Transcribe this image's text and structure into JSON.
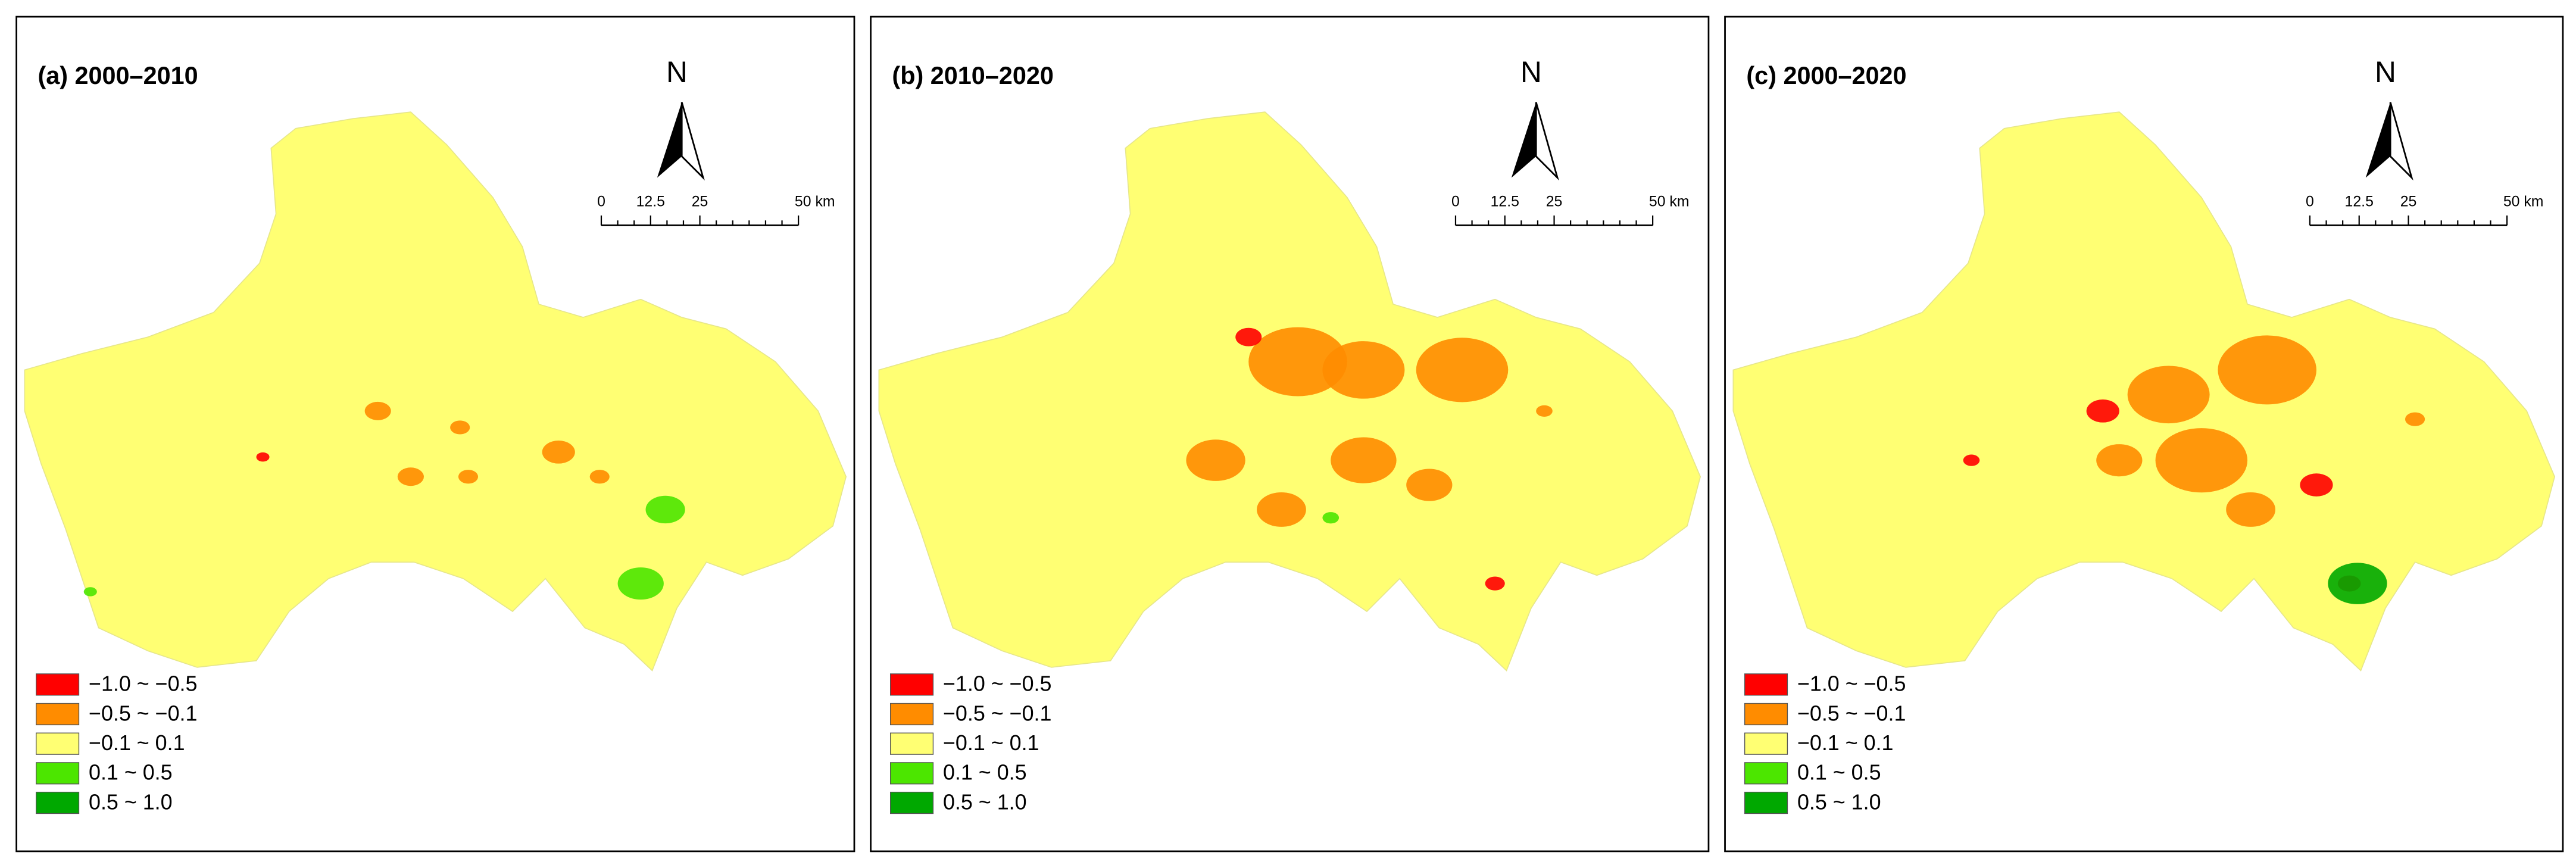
{
  "panels": [
    {
      "title": "(a) 2000–2010",
      "north": "N",
      "scale_labels": [
        "0",
        "12.5",
        "25",
        "50 km"
      ],
      "legend": [
        {
          "label": "−1.0 ~ −0.5",
          "color": "#ff0000"
        },
        {
          "label": "−0.5 ~ −0.1",
          "color": "#ff8c00"
        },
        {
          "label": "−0.1 ~ 0.1",
          "color": "#ffff73"
        },
        {
          "label": "0.1 ~ 0.5",
          "color": "#4ce600"
        },
        {
          "label": "0.5 ~ 1.0",
          "color": "#00a800"
        }
      ]
    },
    {
      "title": "(b) 2010–2020",
      "north": "N",
      "scale_labels": [
        "0",
        "12.5",
        "25",
        "50 km"
      ],
      "legend": [
        {
          "label": "−1.0 ~ −0.5",
          "color": "#ff0000"
        },
        {
          "label": "−0.5 ~ −0.1",
          "color": "#ff8c00"
        },
        {
          "label": "−0.1 ~ 0.1",
          "color": "#ffff73"
        },
        {
          "label": "0.1 ~ 0.5",
          "color": "#4ce600"
        },
        {
          "label": "0.5 ~ 1.0",
          "color": "#00a800"
        }
      ]
    },
    {
      "title": "(c) 2000–2020",
      "north": "N",
      "scale_labels": [
        "0",
        "12.5",
        "25",
        "50 km"
      ],
      "legend": [
        {
          "label": "−1.0 ~ −0.5",
          "color": "#ff0000"
        },
        {
          "label": "−0.5 ~ −0.1",
          "color": "#ff8c00"
        },
        {
          "label": "−0.1 ~ 0.1",
          "color": "#ffff73"
        },
        {
          "label": "0.1 ~ 0.5",
          "color": "#4ce600"
        },
        {
          "label": "0.5 ~ 1.0",
          "color": "#00a800"
        }
      ]
    }
  ]
}
